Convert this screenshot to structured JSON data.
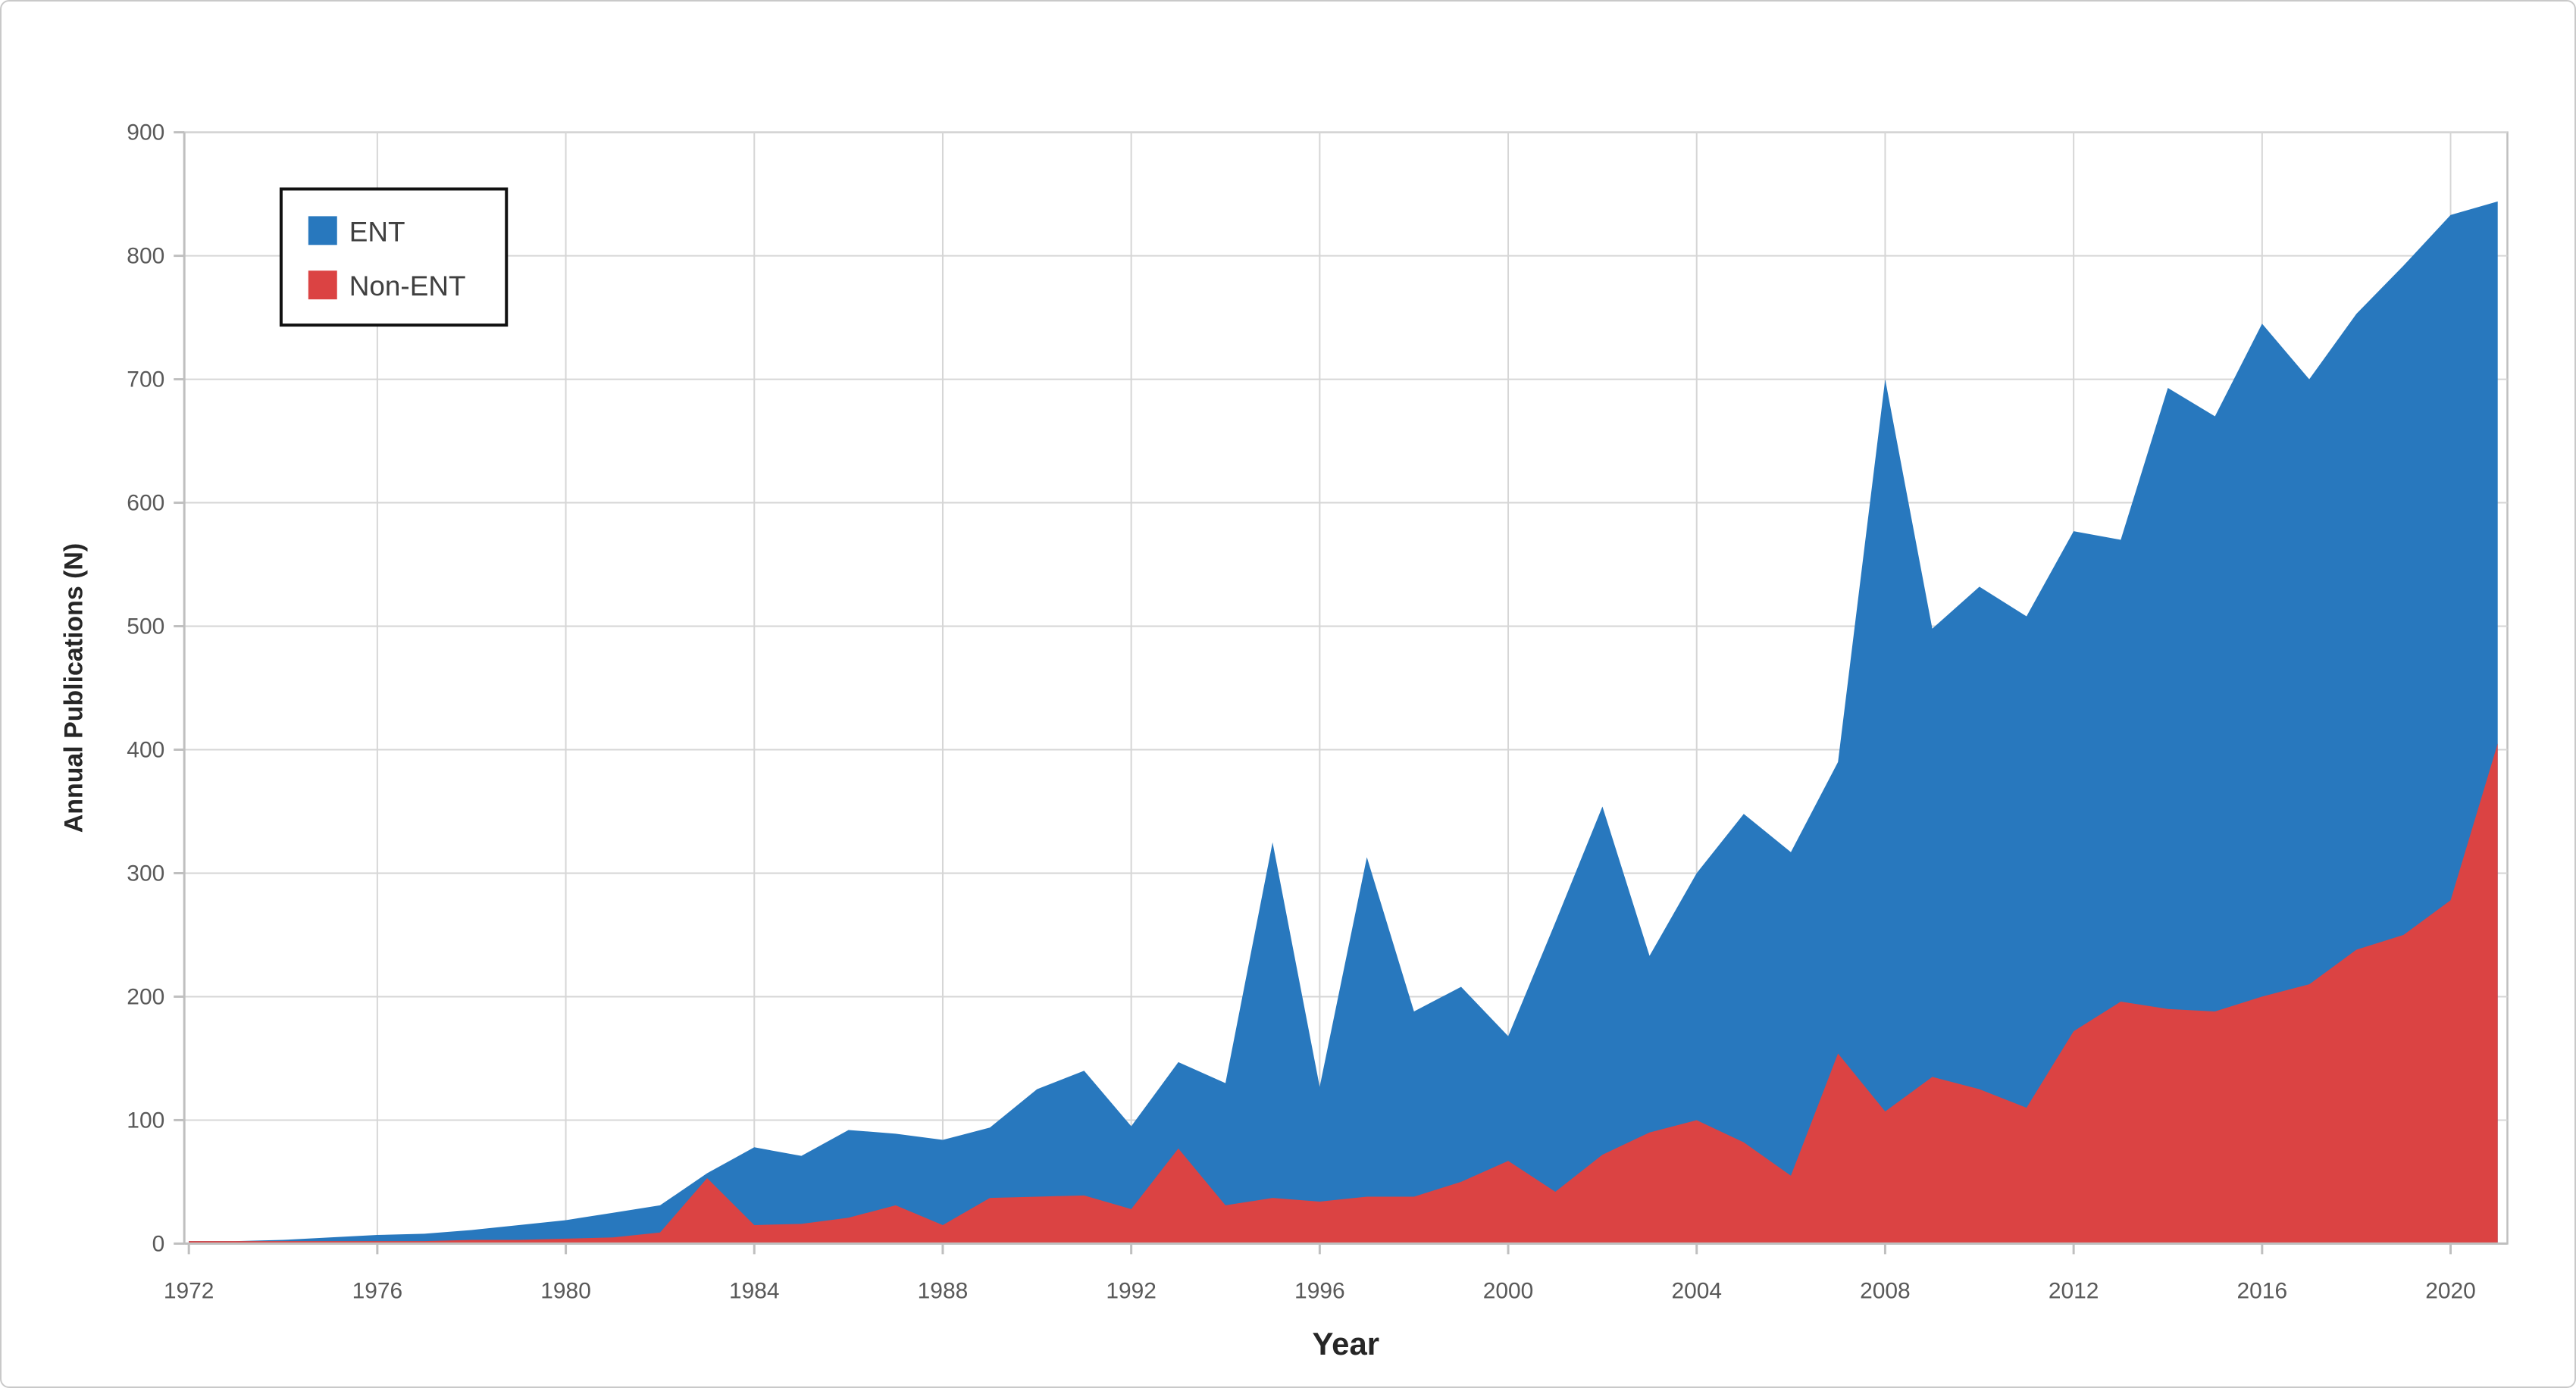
{
  "chart_data": {
    "type": "area",
    "title": "",
    "xlabel": "Year",
    "ylabel": "Annual Publications (N)",
    "x_range": [
      1972,
      2021
    ],
    "ylim": [
      0,
      900
    ],
    "grid": true,
    "legend_position": "top-left",
    "legend_border_color": "#111111",
    "background_color": "#ffffff",
    "gridline_color": "#d6d6d6",
    "frame_color": "#bfbfbf",
    "tick_text_color": "#595959",
    "xticks": [
      1972,
      1976,
      1980,
      1984,
      1988,
      1992,
      1996,
      2000,
      2004,
      2008,
      2012,
      2016,
      2020
    ],
    "yticks": [
      0,
      100,
      200,
      300,
      400,
      500,
      600,
      700,
      800,
      900
    ],
    "years": [
      1972,
      1973,
      1974,
      1975,
      1976,
      1977,
      1978,
      1979,
      1980,
      1981,
      1982,
      1983,
      1984,
      1985,
      1986,
      1987,
      1988,
      1989,
      1990,
      1991,
      1992,
      1993,
      1994,
      1995,
      1996,
      1997,
      1998,
      1999,
      2000,
      2001,
      2002,
      2003,
      2004,
      2005,
      2006,
      2007,
      2008,
      2009,
      2010,
      2011,
      2012,
      2013,
      2014,
      2015,
      2016,
      2017,
      2018,
      2019,
      2020,
      2021
    ],
    "series": [
      {
        "name": "ENT",
        "color": "#2878be",
        "values": [
          2,
          2,
          3,
          5,
          7,
          8,
          11,
          15,
          19,
          25,
          31,
          57,
          78,
          71,
          92,
          89,
          84,
          94,
          125,
          140,
          95,
          147,
          130,
          325,
          127,
          313,
          188,
          208,
          168,
          260,
          354,
          233,
          300,
          348,
          317,
          390,
          700,
          498,
          532,
          508,
          577,
          570,
          693,
          670,
          745,
          700,
          753,
          792,
          833,
          844
        ]
      },
      {
        "name": "Non-ENT",
        "color": "#db4343",
        "values": [
          2,
          2,
          2,
          2,
          2,
          2,
          3,
          3,
          4,
          5,
          9,
          53,
          15,
          16,
          21,
          31,
          15,
          37,
          38,
          39,
          28,
          77,
          31,
          37,
          34,
          38,
          38,
          50,
          67,
          42,
          72,
          90,
          100,
          82,
          55,
          154,
          107,
          135,
          125,
          110,
          172,
          196,
          190,
          188,
          200,
          210,
          238,
          250,
          278,
          405
        ]
      }
    ]
  }
}
